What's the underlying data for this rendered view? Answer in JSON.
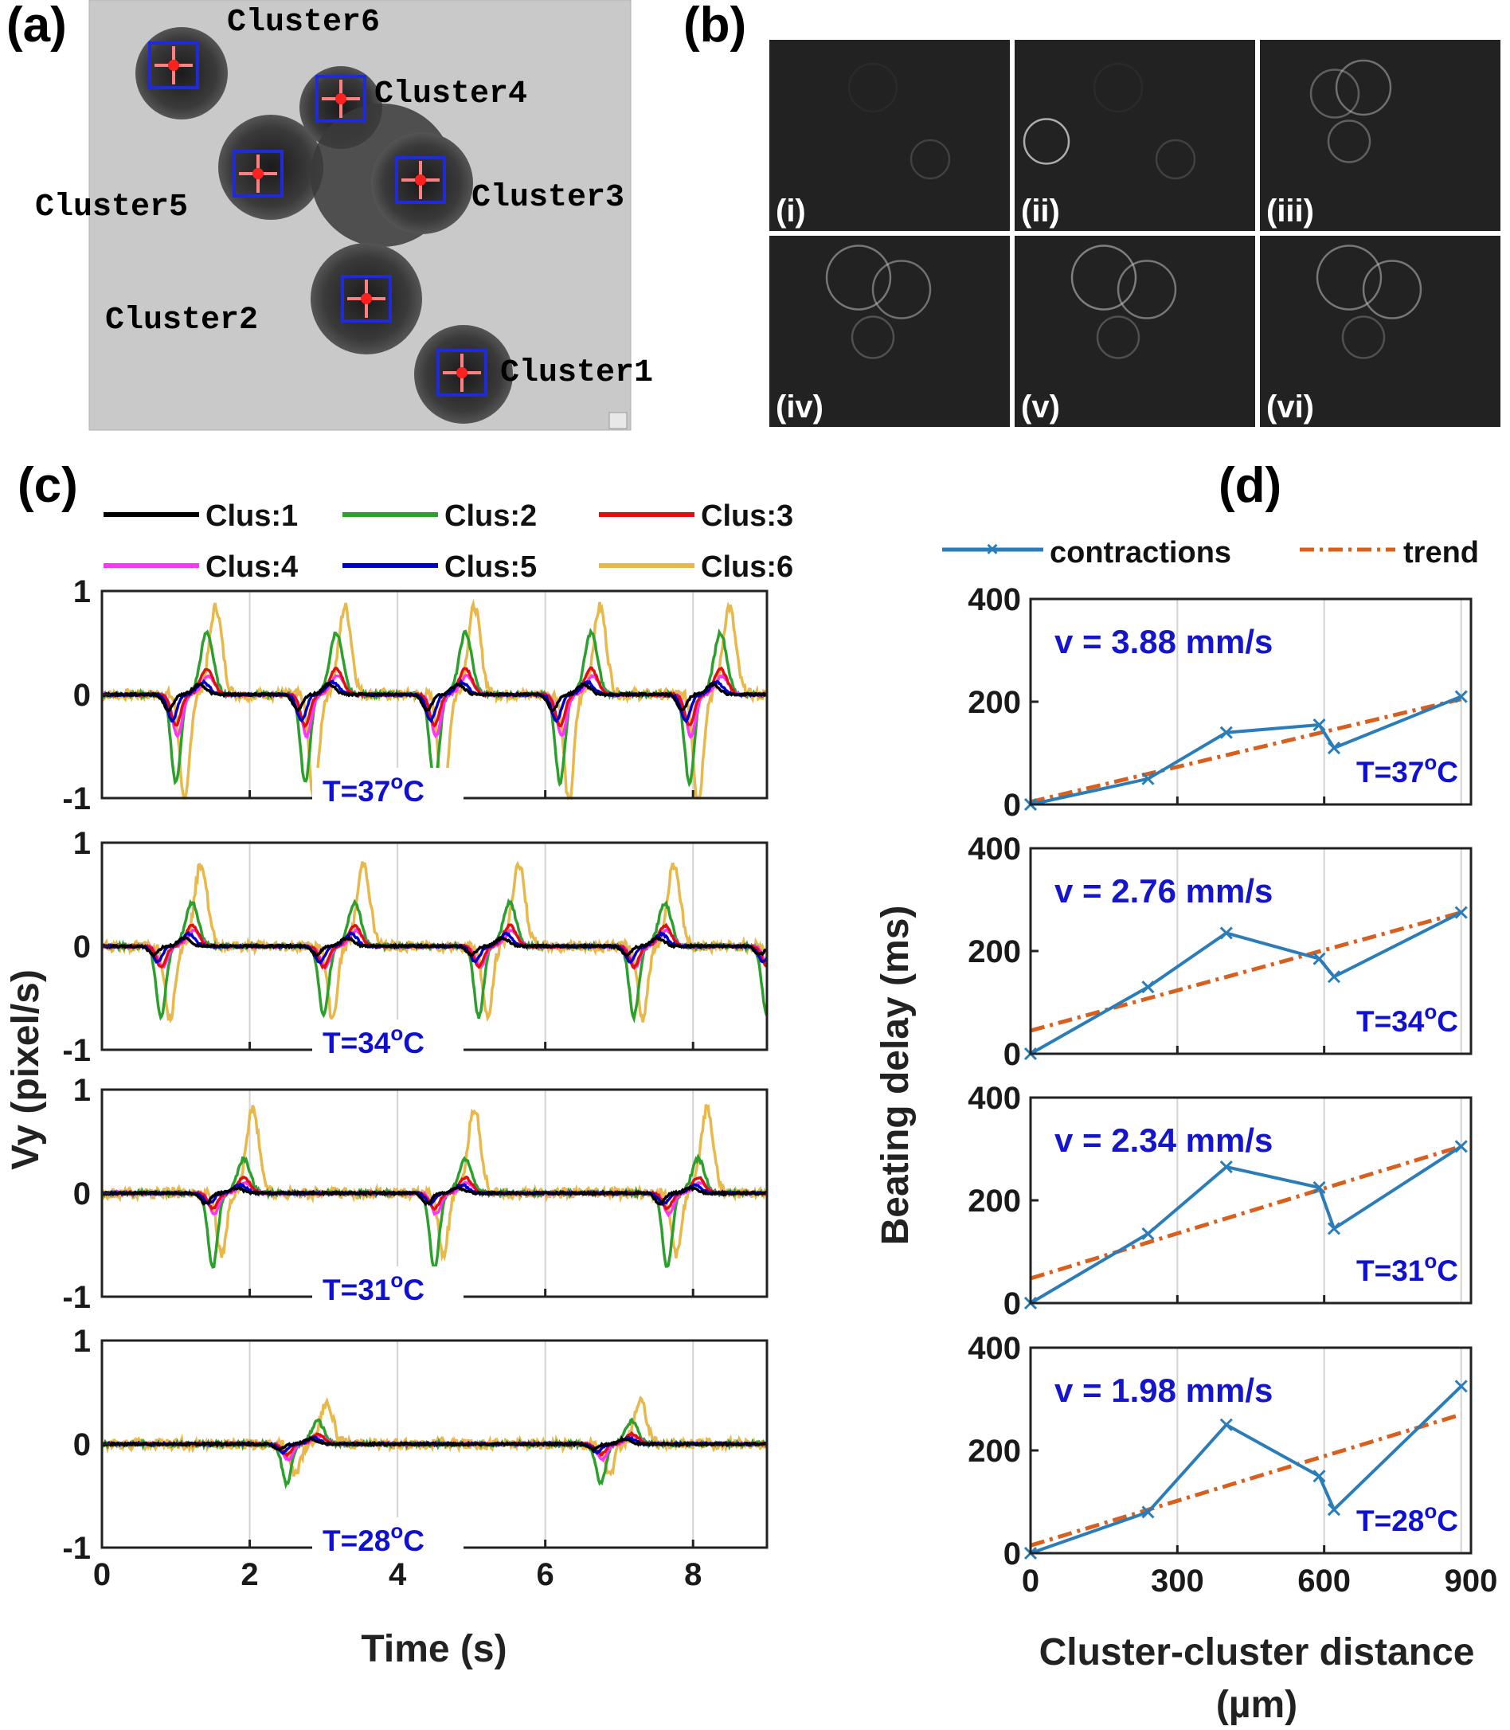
{
  "panels": {
    "a": "(a)",
    "b": "(b)",
    "c": "(c)",
    "d": "(d)"
  },
  "panel_a": {
    "clusters": [
      {
        "id": 1,
        "label": "Cluster1"
      },
      {
        "id": 2,
        "label": "Cluster2"
      },
      {
        "id": 3,
        "label": "Cluster3"
      },
      {
        "id": 4,
        "label": "Cluster4"
      },
      {
        "id": 5,
        "label": "Cluster5"
      },
      {
        "id": 6,
        "label": "Cluster6"
      }
    ]
  },
  "panel_b": {
    "frames": [
      "(i)",
      "(ii)",
      "(iii)",
      "(iv)",
      "(v)",
      "(vi)"
    ]
  },
  "colors": {
    "clus1": "#000000",
    "clus2": "#2ca02c",
    "clus3": "#e01010",
    "clus4": "#ff33ff",
    "clus5": "#0000cc",
    "clus6": "#e8b84a",
    "contractions": "#2a7db8",
    "trend": "#d95f1e",
    "temperature_text": "#1010d0"
  },
  "chart_data": [
    {
      "type": "line",
      "panel": "c",
      "ylabel": "Vy (pixel/s)",
      "xlabel": "Time (s)",
      "xlim": [
        0,
        9
      ],
      "ylim": [
        -1,
        1
      ],
      "xticks": [
        "0",
        "2",
        "4",
        "6",
        "8"
      ],
      "yticks": [
        "1",
        "0",
        "-1"
      ],
      "legend": [
        "Clus:1",
        "Clus:2",
        "Clus:3",
        "Clus:4",
        "Clus:5",
        "Clus:6"
      ],
      "legend_position": "top",
      "subplots": [
        {
          "temperature": "T=37",
          "temperature_sup": "o",
          "temperature_unit": "C",
          "beat_times": [
            1.0,
            2.75,
            4.5,
            6.2,
            7.95
          ],
          "peak_series": {
            "Clus:6": 0.85,
            "Clus:2": 0.6,
            "Clus:3": 0.25,
            "Clus:4": 0.18,
            "Clus:5": 0.12,
            "Clus:1": 0.1
          },
          "trough_series": {
            "Clus:6": -1.05,
            "Clus:2": -0.85,
            "Clus:4": -0.4,
            "Clus:3": -0.3,
            "Clus:5": -0.25,
            "Clus:1": -0.15
          }
        },
        {
          "temperature": "T=34",
          "temperature_sup": "o",
          "temperature_unit": "C",
          "beat_times": [
            0.8,
            3.0,
            5.1,
            7.2,
            9.0
          ],
          "peak_series": {
            "Clus:6": 0.8,
            "Clus:2": 0.42,
            "Clus:3": 0.2,
            "Clus:4": 0.15,
            "Clus:5": 0.12,
            "Clus:1": 0.08
          },
          "trough_series": {
            "Clus:6": -0.7,
            "Clus:2": -0.68,
            "Clus:4": -0.2,
            "Clus:3": -0.2,
            "Clus:5": -0.15,
            "Clus:1": -0.08
          }
        },
        {
          "temperature": "T=31",
          "temperature_sup": "o",
          "temperature_unit": "C",
          "beat_times": [
            1.5,
            4.5,
            7.65
          ],
          "peak_series": {
            "Clus:6": 0.82,
            "Clus:2": 0.33,
            "Clus:3": 0.15,
            "Clus:4": 0.1,
            "Clus:5": 0.08,
            "Clus:1": 0.05
          },
          "trough_series": {
            "Clus:6": -0.6,
            "Clus:2": -0.72,
            "Clus:4": -0.2,
            "Clus:3": -0.15,
            "Clus:5": -0.1,
            "Clus:1": -0.1
          }
        },
        {
          "temperature": "T=28",
          "temperature_sup": "o",
          "temperature_unit": "C",
          "beat_times": [
            2.5,
            6.75
          ],
          "peak_series": {
            "Clus:6": 0.4,
            "Clus:2": 0.22,
            "Clus:3": 0.1,
            "Clus:4": 0.08,
            "Clus:5": 0.06,
            "Clus:1": 0.05
          },
          "trough_series": {
            "Clus:6": -0.3,
            "Clus:2": -0.38,
            "Clus:4": -0.15,
            "Clus:3": -0.1,
            "Clus:5": -0.08,
            "Clus:1": -0.05
          }
        }
      ]
    },
    {
      "type": "line",
      "panel": "d",
      "ylabel": "Beating delay (ms)",
      "xlabel": "Cluster-cluster distance",
      "xlabel_unit": "(µm)",
      "xlim": [
        0,
        900
      ],
      "ylim": [
        0,
        400
      ],
      "xticks": [
        "0",
        "300",
        "600",
        "900"
      ],
      "yticks": [
        "400",
        "200",
        "0"
      ],
      "legend": [
        "contractions",
        "trend"
      ],
      "legend_position": "top",
      "subplots": [
        {
          "temperature": "T=37",
          "temperature_sup": "o",
          "temperature_unit": "C",
          "velocity": "v = 3.88 mm/s",
          "points": [
            [
              0,
              0
            ],
            [
              240,
              50
            ],
            [
              400,
              140
            ],
            [
              590,
              155
            ],
            [
              620,
              110
            ],
            [
              880,
              210
            ]
          ],
          "trend": [
            [
              0,
              5
            ],
            [
              880,
              205
            ]
          ]
        },
        {
          "temperature": "T=34",
          "temperature_sup": "o",
          "temperature_unit": "C",
          "velocity": "v = 2.76 mm/s",
          "points": [
            [
              0,
              0
            ],
            [
              240,
              130
            ],
            [
              400,
              235
            ],
            [
              590,
              185
            ],
            [
              620,
              150
            ],
            [
              880,
              275
            ]
          ],
          "trend": [
            [
              0,
              45
            ],
            [
              880,
              275
            ]
          ]
        },
        {
          "temperature": "T=31",
          "temperature_sup": "o",
          "temperature_unit": "C",
          "velocity": "v = 2.34 mm/s",
          "points": [
            [
              0,
              0
            ],
            [
              240,
              135
            ],
            [
              400,
              265
            ],
            [
              590,
              225
            ],
            [
              620,
              145
            ],
            [
              880,
              305
            ]
          ],
          "trend": [
            [
              0,
              48
            ],
            [
              880,
              305
            ]
          ]
        },
        {
          "temperature": "T=28",
          "temperature_sup": "o",
          "temperature_unit": "C",
          "velocity": "v = 1.98 mm/s",
          "points": [
            [
              0,
              0
            ],
            [
              240,
              80
            ],
            [
              400,
              250
            ],
            [
              590,
              150
            ],
            [
              620,
              85
            ],
            [
              880,
              325
            ]
          ],
          "trend": [
            [
              0,
              15
            ],
            [
              880,
              270
            ]
          ]
        }
      ]
    }
  ]
}
